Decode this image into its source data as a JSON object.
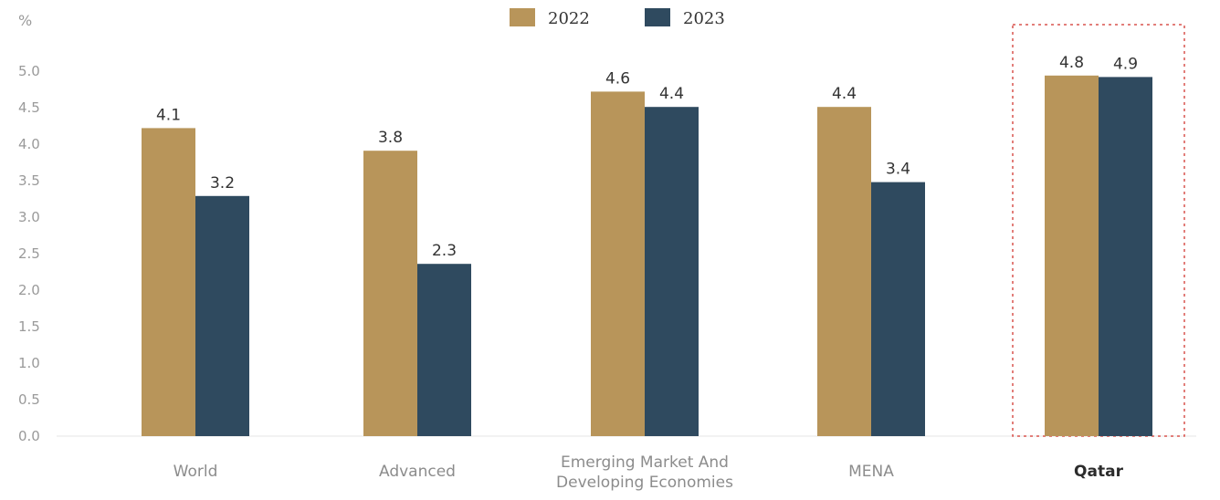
{
  "chart_data": {
    "type": "bar",
    "unit_label": "%",
    "categories": [
      "World",
      "Advanced",
      "Emerging Market And Developing Economies",
      "MENA",
      "Qatar"
    ],
    "category_lines": [
      [
        "World"
      ],
      [
        "Advanced"
      ],
      [
        "Emerging Market And",
        "Developing Economies"
      ],
      [
        "MENA"
      ],
      [
        "Qatar"
      ]
    ],
    "highlighted_category": "Qatar",
    "series": [
      {
        "name": "2022",
        "color": "#b8955a",
        "values": [
          4.1,
          3.8,
          4.6,
          4.4,
          4.8
        ],
        "bar_tops": [
          4.22,
          3.91,
          4.72,
          4.51,
          4.94
        ]
      },
      {
        "name": "2023",
        "color": "#2f4a5f",
        "values": [
          3.2,
          2.3,
          4.4,
          3.4,
          4.9
        ],
        "bar_tops": [
          3.29,
          2.36,
          4.51,
          3.48,
          4.92
        ]
      }
    ],
    "ylim": [
      0,
      5.0
    ],
    "yticks": [
      "0.0",
      "0.5",
      "1.0",
      "1.5",
      "2.0",
      "2.5",
      "3.0",
      "3.5",
      "4.0",
      "4.5",
      "5.0"
    ],
    "legend_position": "top-center",
    "grid": false,
    "highlight_color": "#d9534f"
  }
}
